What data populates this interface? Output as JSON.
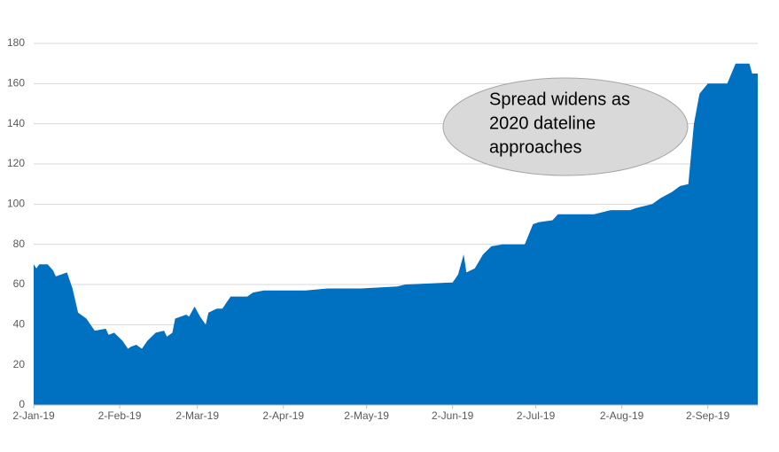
{
  "chart_data": {
    "type": "area",
    "color": "#0070c0",
    "grid": true,
    "x": [
      "2019-01-02",
      "2019-01-03",
      "2019-01-04",
      "2019-01-07",
      "2019-01-09",
      "2019-01-10",
      "2019-01-14",
      "2019-01-16",
      "2019-01-18",
      "2019-01-21",
      "2019-01-23",
      "2019-01-24",
      "2019-01-28",
      "2019-01-29",
      "2019-01-31",
      "2019-02-03",
      "2019-02-05",
      "2019-02-06",
      "2019-02-08",
      "2019-02-10",
      "2019-02-12",
      "2019-02-15",
      "2019-02-18",
      "2019-02-19",
      "2019-02-21",
      "2019-02-22",
      "2019-02-26",
      "2019-02-27",
      "2019-03-01",
      "2019-03-03",
      "2019-03-05",
      "2019-03-06",
      "2019-03-09",
      "2019-03-11",
      "2019-03-14",
      "2019-03-20",
      "2019-03-22",
      "2019-03-26",
      "2019-04-02",
      "2019-04-10",
      "2019-04-18",
      "2019-04-30",
      "2019-05-13",
      "2019-05-16",
      "2019-06-02",
      "2019-06-04",
      "2019-06-06",
      "2019-06-07",
      "2019-06-10",
      "2019-06-13",
      "2019-06-16",
      "2019-06-20",
      "2019-06-28",
      "2019-07-01",
      "2019-07-03",
      "2019-07-08",
      "2019-07-10",
      "2019-07-23",
      "2019-07-29",
      "2019-08-05",
      "2019-08-07",
      "2019-08-13",
      "2019-08-16",
      "2019-08-20",
      "2019-08-23",
      "2019-08-26",
      "2019-08-28",
      "2019-08-30",
      "2019-09-02",
      "2019-09-09",
      "2019-09-12",
      "2019-09-17",
      "2019-09-18",
      "2019-09-20"
    ],
    "values": [
      70,
      68,
      70,
      70,
      67,
      64,
      66,
      58,
      46,
      43,
      39,
      37,
      38,
      35,
      36,
      32,
      28,
      29,
      30,
      28,
      32,
      36,
      37,
      34,
      36,
      43,
      45,
      44,
      49,
      44,
      40,
      46,
      48,
      48,
      54,
      54,
      56,
      57,
      57,
      57,
      58,
      58,
      59,
      60,
      61,
      65,
      75,
      66,
      68,
      75,
      79,
      80,
      80,
      90,
      91,
      92,
      95,
      95,
      97,
      97,
      98,
      100,
      103,
      106,
      109,
      110,
      140,
      155,
      160,
      160,
      170,
      170,
      165,
      165
    ],
    "xlim": [
      "2019-01-02",
      "2019-09-20"
    ],
    "xticks": [
      {
        "value": "2019-01-02",
        "label": "2-Jan-19"
      },
      {
        "value": "2019-02-02",
        "label": "2-Feb-19"
      },
      {
        "value": "2019-03-02",
        "label": "2-Mar-19"
      },
      {
        "value": "2019-04-02",
        "label": "2-Apr-19"
      },
      {
        "value": "2019-05-02",
        "label": "2-May-19"
      },
      {
        "value": "2019-06-02",
        "label": "2-Jun-19"
      },
      {
        "value": "2019-07-02",
        "label": "2-Jul-19"
      },
      {
        "value": "2019-08-02",
        "label": "2-Aug-19"
      },
      {
        "value": "2019-09-02",
        "label": "2-Sep-19"
      }
    ],
    "ylim": [
      0,
      180
    ],
    "yticks": [
      0,
      20,
      40,
      60,
      80,
      100,
      120,
      140,
      160,
      180
    ],
    "annotation": [
      "Spread widens as",
      "2020 dateline",
      "approaches"
    ]
  }
}
